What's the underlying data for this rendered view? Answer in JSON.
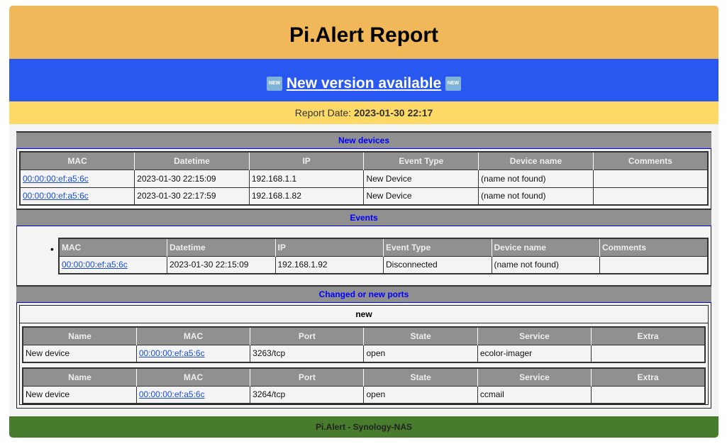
{
  "title": "Pi.Alert Report",
  "version_banner": "New version available",
  "version_badge": "NEW",
  "report_date_label": "Report Date:",
  "report_date": "2023-01-30 22:17",
  "new_devices": {
    "title": "New devices",
    "columns": [
      "MAC",
      "Datetime",
      "IP",
      "Event Type",
      "Device name",
      "Comments"
    ],
    "rows": [
      [
        "00:00:00:ef:a5:6c",
        "2023-01-30 22:15:09",
        "192.168.1.1",
        "New Device",
        "(name not found)",
        ""
      ],
      [
        "00:00:00:ef:a5:6c",
        "2023-01-30 22:17:59",
        "192.168.1.82",
        "New Device",
        "(name not found)",
        ""
      ]
    ]
  },
  "events": {
    "title": "Events",
    "columns": [
      "MAC",
      "Datetime",
      "IP",
      "Event Type",
      "Device name",
      "Comments"
    ],
    "rows": [
      [
        "00:00:00:ef:a5:6c",
        "2023-01-30 22:15:09",
        "192.168.1.92",
        "Disconnected",
        "(name not found)",
        ""
      ]
    ]
  },
  "ports": {
    "title": "Changed or new ports",
    "group": "new",
    "columns": [
      "Name",
      "MAC",
      "Port",
      "State",
      "Service",
      "Extra"
    ],
    "tables": [
      [
        [
          "New device",
          "00:00:00:ef:a5:6c",
          "3263/tcp",
          "open",
          "ecolor-imager",
          ""
        ]
      ],
      [
        [
          "New device",
          "00:00:00:ef:a5:6c",
          "3264/tcp",
          "open",
          "ccmail",
          ""
        ]
      ]
    ]
  },
  "footer": "Pi.Alert - Synology-NAS",
  "colors": {
    "header": "#f0b858",
    "banner": "#2958f0",
    "date_bar": "#fed966",
    "footer": "#467c2c",
    "section_header": "#909090"
  }
}
